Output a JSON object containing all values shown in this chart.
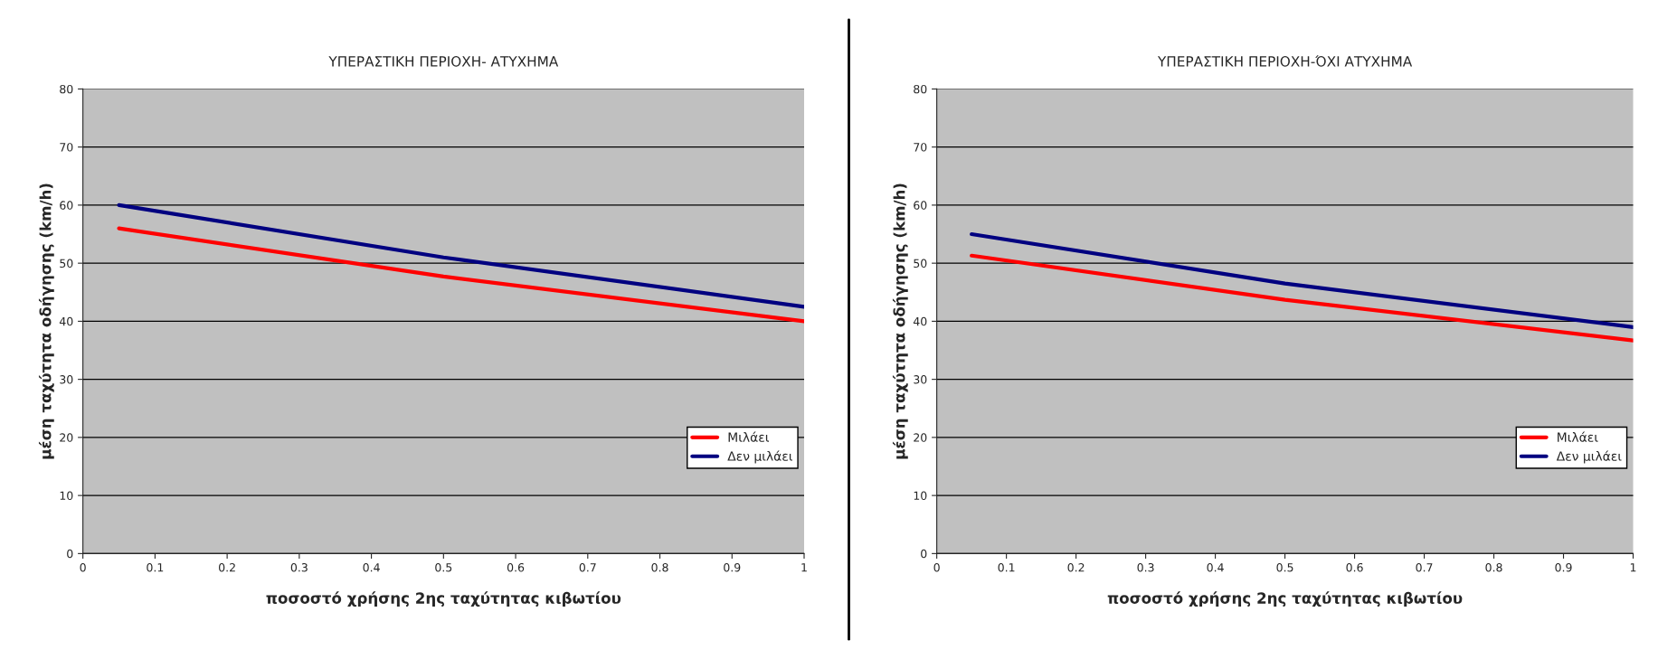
{
  "chart_data": [
    {
      "type": "line",
      "title": "ΥΠΕΡΑΣΤΙΚΗ ΠΕΡΙΟΧΗ- ΑΤΥΧΗΜΑ",
      "xlabel": "ποσοστό χρήσης 2ης ταχύτητας κιβωτίου",
      "ylabel": "μέση ταχύτητα οδήγησης (km/h)",
      "series": [
        {
          "name": "Μιλάει",
          "color": "#ff0000",
          "x": [
            0.05,
            0.5,
            1
          ],
          "values": [
            56,
            47.7,
            40
          ]
        },
        {
          "name": "Δεν μιλάει",
          "color": "#000080",
          "x": [
            0.05,
            0.5,
            1
          ],
          "values": [
            60,
            51,
            42.5
          ]
        }
      ],
      "xlim": [
        0,
        1
      ],
      "xticks": [
        0,
        0.1,
        0.2,
        0.3,
        0.4,
        0.5,
        0.6,
        0.7,
        0.8,
        0.9,
        1
      ],
      "ylim": [
        0,
        80
      ],
      "yticks": [
        0,
        10,
        20,
        30,
        40,
        50,
        60,
        70,
        80
      ],
      "grid": "y",
      "legend": "bottom right"
    },
    {
      "type": "line",
      "title": "ΥΠΕΡΑΣΤΙΚΗ ΠΕΡΙΟΧΗ-ΌΧΙ ΑΤΥΧΗΜΑ",
      "xlabel": "ποσοστό χρήσης 2ης ταχύτητας κιβωτίου",
      "ylabel": "μέση ταχύτητα οδήγησης (km/h)",
      "series": [
        {
          "name": "Μιλάει",
          "color": "#ff0000",
          "x": [
            0.05,
            0.5,
            1
          ],
          "values": [
            51.3,
            43.7,
            36.7
          ]
        },
        {
          "name": "Δεν μιλάει",
          "color": "#000080",
          "x": [
            0.05,
            0.5,
            1
          ],
          "values": [
            55,
            46.5,
            39
          ]
        }
      ],
      "xlim": [
        0,
        1
      ],
      "xticks": [
        0,
        0.1,
        0.2,
        0.3,
        0.4,
        0.5,
        0.6,
        0.7,
        0.8,
        0.9,
        1
      ],
      "ylim": [
        0,
        80
      ],
      "yticks": [
        0,
        10,
        20,
        30,
        40,
        50,
        60,
        70,
        80
      ],
      "grid": "y",
      "legend": "bottom right"
    }
  ]
}
